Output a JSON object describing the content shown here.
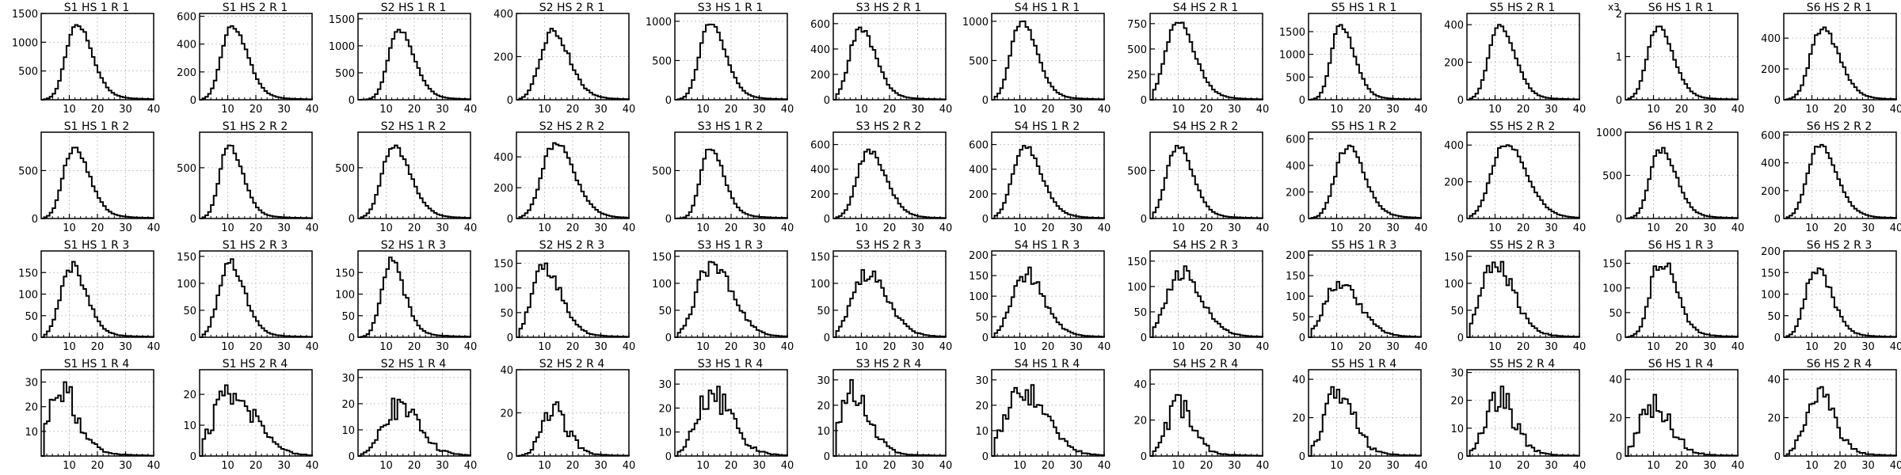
{
  "chart_data": {
    "type": "step",
    "layout": "4 rows x 12 columns of small-multiple histograms",
    "grid": true,
    "xlim": [
      0,
      40
    ],
    "xticks": [
      10,
      20,
      30,
      40
    ],
    "panels": [
      {
        "title": "S1 HS 1 R 1",
        "yticks": [
          500,
          1000,
          1500
        ],
        "ymax": 1500,
        "peak": 1300,
        "mode": 12,
        "sigma": 4.5,
        "tail": 0.18,
        "noise": 0.03
      },
      {
        "title": "S1 HS 2 R 1",
        "yticks": [
          0,
          200,
          400,
          600
        ],
        "ymax": 620,
        "peak": 530,
        "mode": 11,
        "sigma": 4.5,
        "tail": 0.16,
        "noise": 0.03
      },
      {
        "title": "S2 HS 1 R 1",
        "yticks": [
          0,
          500,
          1000,
          1500
        ],
        "ymax": 1600,
        "peak": 1300,
        "mode": 14,
        "sigma": 4.5,
        "tail": 0.15,
        "noise": 0.03
      },
      {
        "title": "S2 HS 2 R 1",
        "yticks": [
          0,
          200,
          400
        ],
        "ymax": 400,
        "peak": 330,
        "mode": 12,
        "sigma": 5,
        "tail": 0.2,
        "noise": 0.07
      },
      {
        "title": "S3 HS 1 R 1",
        "yticks": [
          0,
          500,
          1000
        ],
        "ymax": 1100,
        "peak": 960,
        "mode": 12,
        "sigma": 4.5,
        "tail": 0.16,
        "noise": 0.03
      },
      {
        "title": "S3 HS 2 R 1",
        "yticks": [
          0,
          200,
          400,
          600
        ],
        "ymax": 680,
        "peak": 570,
        "mode": 9,
        "sigma": 4.5,
        "tail": 0.18,
        "noise": 0.05
      },
      {
        "title": "S4 HS 1 R 1",
        "yticks": [
          0,
          500,
          1000
        ],
        "ymax": 1100,
        "peak": 1000,
        "mode": 10,
        "sigma": 4.5,
        "tail": 0.18,
        "noise": 0.03
      },
      {
        "title": "S4 HS 2 R 1",
        "yticks": [
          0,
          250,
          500,
          750
        ],
        "ymax": 850,
        "peak": 760,
        "mode": 9,
        "sigma": 5,
        "tail": 0.2,
        "noise": 0.04
      },
      {
        "title": "S5 HS 1 R 1",
        "yticks": [
          0,
          500,
          1000,
          1500
        ],
        "ymax": 1900,
        "peak": 1650,
        "mode": 11,
        "sigma": 4,
        "tail": 0.12,
        "noise": 0.03
      },
      {
        "title": "S5 HS 2 R 1",
        "yticks": [
          0,
          200,
          400
        ],
        "ymax": 460,
        "peak": 400,
        "mode": 11,
        "sigma": 4.5,
        "tail": 0.14,
        "noise": 0.03
      },
      {
        "title": "S6 HS 1 R 1",
        "yticks": [
          0,
          1,
          2
        ],
        "ymax": 2,
        "peak": 1.7,
        "mode": 11,
        "sigma": 4.5,
        "tail": 0.14,
        "noise": 0.03,
        "exponent": "x3"
      },
      {
        "title": "S6 HS 2 R 1",
        "yticks": [
          0,
          200,
          400
        ],
        "ymax": 560,
        "peak": 470,
        "mode": 13,
        "sigma": 5,
        "tail": 0.18,
        "noise": 0.05
      },
      {
        "title": "S1 HS 1 R 2",
        "yticks": [
          0,
          500
        ],
        "ymax": 900,
        "peak": 740,
        "mode": 11,
        "sigma": 4.5,
        "tail": 0.2,
        "noise": 0.04
      },
      {
        "title": "S1 HS 2 R 2",
        "yticks": [
          0,
          500
        ],
        "ymax": 850,
        "peak": 720,
        "mode": 10,
        "sigma": 4,
        "tail": 0.16,
        "noise": 0.04
      },
      {
        "title": "S2 HS 1 R 2",
        "yticks": [
          0,
          500
        ],
        "ymax": 850,
        "peak": 720,
        "mode": 12,
        "sigma": 5,
        "tail": 0.2,
        "noise": 0.04
      },
      {
        "title": "S2 HS 2 R 2",
        "yticks": [
          0,
          200,
          400
        ],
        "ymax": 560,
        "peak": 490,
        "mode": 13,
        "sigma": 5.5,
        "tail": 0.22,
        "noise": 0.04
      },
      {
        "title": "S3 HS 1 R 2",
        "yticks": [
          0,
          500
        ],
        "ymax": 900,
        "peak": 720,
        "mode": 12,
        "sigma": 4,
        "tail": 0.18,
        "noise": 0.04
      },
      {
        "title": "S3 HS 2 R 2",
        "yticks": [
          0,
          200,
          400,
          600
        ],
        "ymax": 700,
        "peak": 560,
        "mode": 12,
        "sigma": 5,
        "tail": 0.18,
        "noise": 0.05
      },
      {
        "title": "S4 HS 1 R 2",
        "yticks": [
          0,
          200,
          400,
          600
        ],
        "ymax": 700,
        "peak": 590,
        "mode": 11,
        "sigma": 5,
        "tail": 0.2,
        "noise": 0.04
      },
      {
        "title": "S4 HS 2 R 2",
        "yticks": [
          0,
          500
        ],
        "ymax": 900,
        "peak": 760,
        "mode": 9,
        "sigma": 4.5,
        "tail": 0.18,
        "noise": 0.04
      },
      {
        "title": "S5 HS 1 R 2",
        "yticks": [
          0,
          200,
          400,
          600
        ],
        "ymax": 650,
        "peak": 550,
        "mode": 13,
        "sigma": 5,
        "tail": 0.22,
        "noise": 0.05
      },
      {
        "title": "S5 HS 2 R 2",
        "yticks": [
          0,
          200,
          400
        ],
        "ymax": 470,
        "peak": 400,
        "mode": 13,
        "sigma": 6,
        "tail": 0.22,
        "noise": 0.04
      },
      {
        "title": "S6 HS 1 R 2",
        "yticks": [
          0,
          500,
          1000
        ],
        "ymax": 1000,
        "peak": 820,
        "mode": 12,
        "sigma": 4.5,
        "tail": 0.18,
        "noise": 0.04
      },
      {
        "title": "S6 HS 2 R 2",
        "yticks": [
          0,
          200,
          400,
          600
        ],
        "ymax": 620,
        "peak": 530,
        "mode": 12,
        "sigma": 5,
        "tail": 0.2,
        "noise": 0.04
      },
      {
        "title": "S1 HS 1 R 3",
        "yticks": [
          0,
          50,
          100,
          150
        ],
        "ymax": 200,
        "peak": 175,
        "mode": 10,
        "sigma": 4.5,
        "tail": 0.18,
        "noise": 0.08
      },
      {
        "title": "S1 HS 2 R 3",
        "yticks": [
          0,
          50,
          100,
          150
        ],
        "ymax": 160,
        "peak": 145,
        "mode": 10,
        "sigma": 4.5,
        "tail": 0.16,
        "noise": 0.08
      },
      {
        "title": "S2 HS 1 R 3",
        "yticks": [
          0,
          50,
          100,
          150
        ],
        "ymax": 200,
        "peak": 185,
        "mode": 11,
        "sigma": 4,
        "tail": 0.18,
        "noise": 0.08
      },
      {
        "title": "S2 HS 2 R 3",
        "yticks": [
          0,
          50,
          100,
          150
        ],
        "ymax": 175,
        "peak": 150,
        "mode": 9,
        "sigma": 5,
        "tail": 0.22,
        "noise": 0.1
      },
      {
        "title": "S3 HS 1 R 3",
        "yticks": [
          0,
          50,
          100,
          150
        ],
        "ymax": 160,
        "peak": 140,
        "mode": 12,
        "sigma": 6,
        "tail": 0.24,
        "noise": 0.14
      },
      {
        "title": "S3 HS 2 R 3",
        "yticks": [
          0,
          50,
          100,
          150
        ],
        "ymax": 160,
        "peak": 125,
        "mode": 11,
        "sigma": 6,
        "tail": 0.26,
        "noise": 0.12
      },
      {
        "title": "S4 HS 1 R 3",
        "yticks": [
          0,
          50,
          100,
          150,
          200
        ],
        "ymax": 210,
        "peak": 170,
        "mode": 11,
        "sigma": 5.5,
        "tail": 0.22,
        "noise": 0.12
      },
      {
        "title": "S4 HS 2 R 3",
        "yticks": [
          0,
          50,
          100,
          150
        ],
        "ymax": 170,
        "peak": 140,
        "mode": 10,
        "sigma": 6,
        "tail": 0.26,
        "noise": 0.12
      },
      {
        "title": "S5 HS 1 R 3",
        "yticks": [
          0,
          50,
          100,
          150,
          200
        ],
        "ymax": 210,
        "peak": 135,
        "mode": 10,
        "sigma": 6,
        "tail": 0.24,
        "noise": 0.12
      },
      {
        "title": "S5 HS 2 R 3",
        "yticks": [
          0,
          50,
          100,
          150
        ],
        "ymax": 160,
        "peak": 140,
        "mode": 9,
        "sigma": 5.5,
        "tail": 0.22,
        "noise": 0.14
      },
      {
        "title": "S6 HS 1 R 3",
        "yticks": [
          0,
          50,
          100,
          150
        ],
        "ymax": 175,
        "peak": 150,
        "mode": 12,
        "sigma": 4.5,
        "tail": 0.18,
        "noise": 0.1
      },
      {
        "title": "S6 HS 2 R 3",
        "yticks": [
          0,
          50,
          100,
          150,
          200
        ],
        "ymax": 200,
        "peak": 160,
        "mode": 11,
        "sigma": 4.5,
        "tail": 0.16,
        "noise": 0.08
      },
      {
        "title": "S1 HS 1 R 4",
        "yticks": [
          10,
          20,
          30
        ],
        "ymax": 35,
        "peak": 30,
        "mode": 6,
        "sigma": 5,
        "tail": 0.26,
        "noise": 0.25
      },
      {
        "title": "S1 HS 2 R 4",
        "yticks": [
          0,
          10,
          20
        ],
        "ymax": 28,
        "peak": 23,
        "mode": 10,
        "sigma": 7,
        "tail": 0.3,
        "noise": 0.25
      },
      {
        "title": "S2 HS 1 R 4",
        "yticks": [
          0,
          10,
          20,
          30
        ],
        "ymax": 33,
        "peak": 22,
        "mode": 13,
        "sigma": 6,
        "tail": 0.28,
        "noise": 0.28
      },
      {
        "title": "S2 HS 2 R 4",
        "yticks": [
          0,
          20,
          40
        ],
        "ymax": 40,
        "peak": 25,
        "mode": 12,
        "sigma": 4.5,
        "tail": 0.18,
        "noise": 0.25
      },
      {
        "title": "S3 HS 1 R 4",
        "yticks": [
          0,
          10,
          20,
          30
        ],
        "ymax": 36,
        "peak": 29,
        "mode": 12,
        "sigma": 6,
        "tail": 0.26,
        "noise": 0.25
      },
      {
        "title": "S3 HS 2 R 4",
        "yticks": [
          0,
          10,
          20,
          30
        ],
        "ymax": 34,
        "peak": 30,
        "mode": 6,
        "sigma": 5,
        "tail": 0.22,
        "noise": 0.22
      },
      {
        "title": "S4 HS 1 R 4",
        "yticks": [
          0,
          10,
          20,
          30
        ],
        "ymax": 34,
        "peak": 28,
        "mode": 10,
        "sigma": 7,
        "tail": 0.26,
        "noise": 0.2
      },
      {
        "title": "S4 HS 2 R 4",
        "yticks": [
          0,
          20,
          40
        ],
        "ymax": 48,
        "peak": 34,
        "mode": 9,
        "sigma": 4.5,
        "tail": 0.2,
        "noise": 0.28
      },
      {
        "title": "S5 HS 1 R 4",
        "yticks": [
          0,
          20,
          40
        ],
        "ymax": 45,
        "peak": 36,
        "mode": 9,
        "sigma": 5,
        "tail": 0.22,
        "noise": 0.28
      },
      {
        "title": "S5 HS 2 R 4",
        "yticks": [
          0,
          10,
          20,
          30
        ],
        "ymax": 31,
        "peak": 25,
        "mode": 10,
        "sigma": 5,
        "tail": 0.15,
        "noise": 0.3
      },
      {
        "title": "S6 HS 1 R 4",
        "yticks": [
          0,
          20,
          40
        ],
        "ymax": 45,
        "peak": 32,
        "mode": 9,
        "sigma": 5,
        "tail": 0.2,
        "noise": 0.3
      },
      {
        "title": "S6 HS 2 R 4",
        "yticks": [
          0,
          20,
          40
        ],
        "ymax": 45,
        "peak": 36,
        "mode": 11,
        "sigma": 5,
        "tail": 0.2,
        "noise": 0.22
      }
    ]
  }
}
